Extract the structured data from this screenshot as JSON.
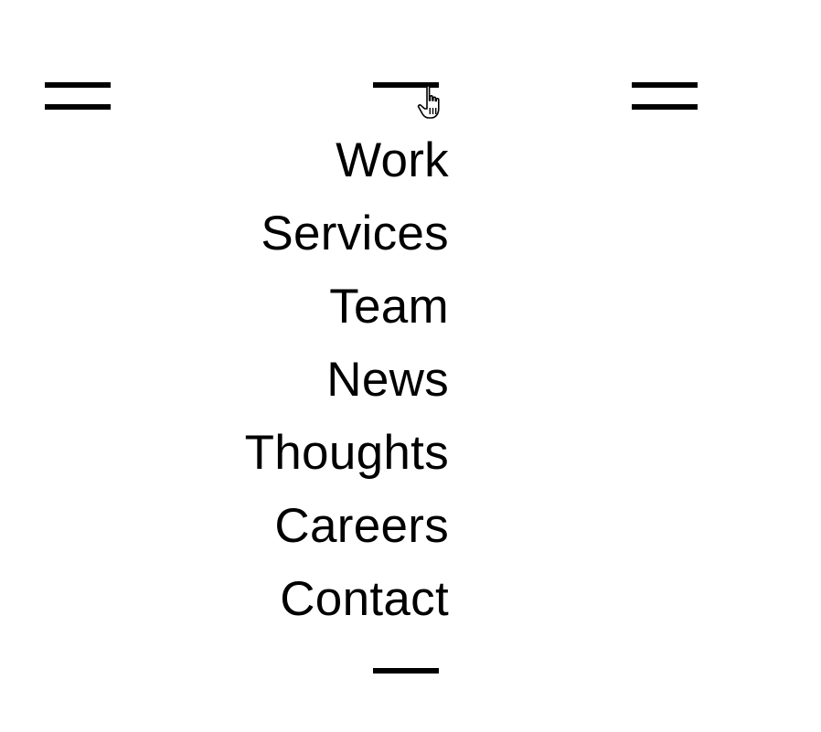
{
  "nav": {
    "items": [
      {
        "label": "Work"
      },
      {
        "label": "Services"
      },
      {
        "label": "Team"
      },
      {
        "label": "News"
      },
      {
        "label": "Thoughts"
      },
      {
        "label": "Careers"
      },
      {
        "label": "Contact"
      }
    ]
  },
  "icons": {
    "left_toggle": "hamburger-icon",
    "right_toggle": "hamburger-icon",
    "menu_toggle_open": "close-bar-icon",
    "cursor": "hand-pointer-cursor-icon"
  },
  "colors": {
    "background": "#ffffff",
    "foreground": "#000000"
  }
}
